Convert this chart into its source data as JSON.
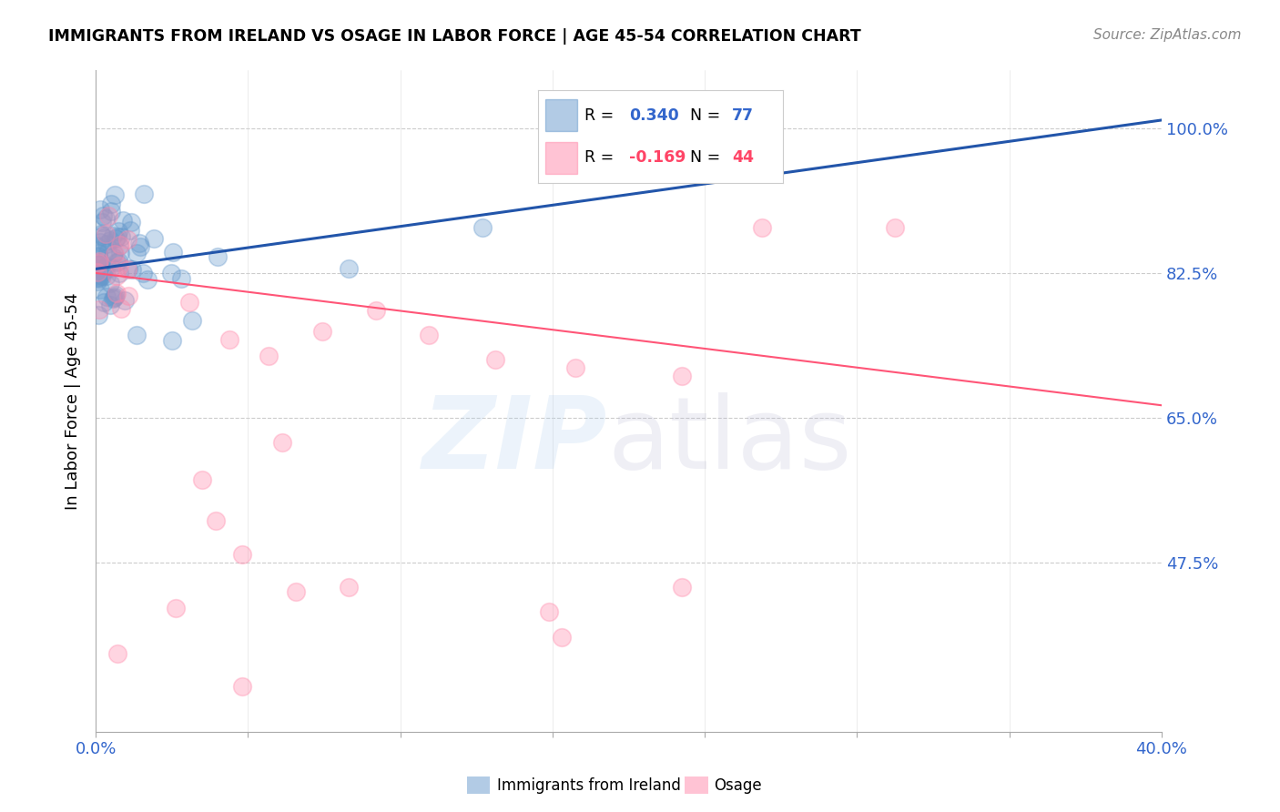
{
  "title": "IMMIGRANTS FROM IRELAND VS OSAGE IN LABOR FORCE | AGE 45-54 CORRELATION CHART",
  "source": "Source: ZipAtlas.com",
  "ylabel": "In Labor Force | Age 45-54",
  "xlim": [
    0.0,
    40.0
  ],
  "ylim": [
    27.0,
    107.0
  ],
  "ireland_R": 0.34,
  "ireland_N": 77,
  "osage_R": -0.169,
  "osage_N": 44,
  "ireland_color": "#6699CC",
  "osage_color": "#FF88AA",
  "ireland_line_color": "#2255AA",
  "osage_line_color": "#FF5577",
  "ytick_vals": [
    47.5,
    65.0,
    82.5,
    100.0
  ],
  "ireland_line_x0": 0.0,
  "ireland_line_y0": 83.0,
  "ireland_line_x1": 40.0,
  "ireland_line_y1": 101.0,
  "osage_line_x0": 0.0,
  "osage_line_y0": 82.5,
  "osage_line_x1": 40.0,
  "osage_line_y1": 66.5
}
